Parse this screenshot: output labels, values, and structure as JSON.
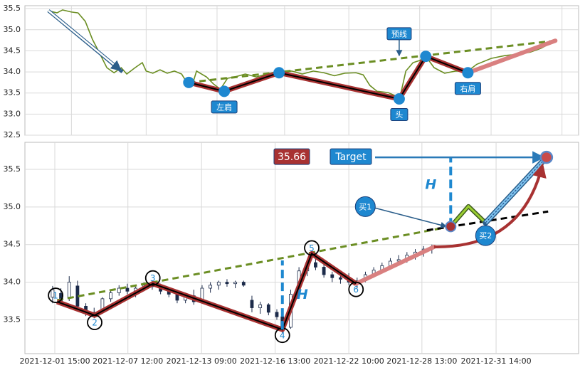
{
  "chart_data": [
    {
      "type": "line",
      "xlim": [
        0,
        100
      ],
      "xticks": [
        8.4,
        21.9,
        34.7,
        46.9,
        58.5,
        71.3,
        84.2,
        97.0
      ],
      "ylim": [
        32.5,
        35.57
      ],
      "yticks": [
        32.5,
        {
          "value": 33,
          "label": "33.0"
        },
        33.5,
        {
          "value": 34,
          "label": "34.0"
        },
        34.5,
        {
          "value": 35,
          "label": "35.0"
        },
        35.5
      ],
      "grid": true,
      "series": [
        {
          "color": "#6b8e23",
          "x": [
            4.2,
            5.8,
            6.8,
            8.4,
            9.6,
            10.9,
            12.2,
            13.5,
            14.8,
            16.1,
            17.4,
            18.4,
            19.9,
            21.2,
            21.9,
            23.1,
            24.4,
            25.7,
            27.0,
            28.3,
            29.2,
            30.2,
            31.0,
            32.8,
            34.1,
            35.3,
            36.6,
            37.9,
            39.8,
            41.8,
            43.7,
            45.9,
            48.2,
            50.1,
            52.1,
            54.0,
            55.9,
            57.8,
            59.8,
            61.1,
            62.3,
            63.6,
            65.6,
            67.0,
            67.7,
            68.8,
            70.1,
            71.3,
            72.4,
            73.9,
            75.8,
            77.8,
            80.0,
            81.6,
            84.2,
            86.8,
            89.3,
            91.3,
            93.2,
            95.1,
            95.8
          ],
          "values": [
            35.45,
            35.4,
            35.47,
            35.42,
            35.4,
            35.2,
            34.77,
            34.44,
            34.1,
            33.98,
            34.1,
            33.95,
            34.1,
            34.22,
            34.02,
            33.97,
            34.05,
            33.97,
            34.02,
            33.95,
            33.76,
            33.68,
            34.02,
            33.88,
            33.71,
            33.59,
            33.85,
            33.88,
            33.95,
            33.88,
            33.95,
            34.02,
            34.02,
            33.95,
            34.02,
            33.98,
            33.91,
            33.97,
            33.98,
            33.93,
            33.68,
            33.54,
            33.51,
            33.43,
            33.38,
            34.02,
            34.22,
            34.27,
            34.37,
            34.1,
            33.97,
            34.02,
            34.02,
            34.18,
            34.32,
            34.39,
            34.42,
            34.47,
            34.56,
            34.69,
            34.74
          ]
        }
      ],
      "pattern": {
        "color": "#a83232",
        "x": [
          29.6,
          36.0,
          45.9,
          67.6,
          72.4,
          80.0
        ],
        "values": [
          33.75,
          33.54,
          33.98,
          33.36,
          34.37,
          33.98
        ]
      },
      "projection": {
        "color": "#d98080",
        "x": [
          80.0,
          95.8
        ],
        "values": [
          33.98,
          34.74
        ]
      },
      "neckline": {
        "color": "#6b8e23",
        "x": [
          29.6,
          95.8
        ],
        "values": [
          33.75,
          34.74
        ]
      },
      "annotations": [
        {
          "text": "左肩",
          "x": 36.0,
          "y": 33.54
        },
        {
          "text": "头",
          "x": 67.6,
          "y": 33.36
        },
        {
          "text": "右肩",
          "x": 80.0,
          "y": 33.98
        }
      ],
      "neck_label": {
        "text": "预线",
        "x": 67.6,
        "y": 34.35
      }
    },
    {
      "type": "candlestick",
      "xlim": [
        0,
        100
      ],
      "xticks": [
        {
          "value": 5.4,
          "label": "2021-12-01 15:00"
        },
        {
          "value": 18.6,
          "label": "2021-12-07 12:00"
        },
        {
          "value": 31.9,
          "label": "2021-12-13 09:00"
        },
        {
          "value": 45.2,
          "label": "2021-12-16 13:00"
        },
        {
          "value": 58.5,
          "label": "2021-12-22 10:00"
        },
        {
          "value": 71.7,
          "label": "2021-12-28 13:00"
        },
        {
          "value": 85.1,
          "label": "2021-12-31 14:00"
        }
      ],
      "ylim": [
        33.05,
        35.86
      ],
      "yticks": [
        33.5,
        {
          "value": 34,
          "label": "34.0"
        },
        34.5,
        {
          "value": 35,
          "label": "35.0"
        },
        35.5
      ],
      "grid": true,
      "x": [
        5.0,
        6.5,
        8.0,
        9.5,
        11.0,
        12.5,
        14.0,
        15.5,
        17.0,
        18.5,
        20.0,
        21.5,
        23.0,
        24.5,
        26.0,
        27.5,
        29.0,
        30.5,
        32.0,
        33.5,
        35.0,
        36.5,
        38.0,
        39.5,
        41.0,
        42.5,
        44.0,
        45.5,
        46.5,
        48.0,
        49.5,
        51.0,
        52.5,
        54.0,
        55.5,
        57.0,
        58.5,
        60.0,
        61.5,
        63.0,
        64.5,
        66.0,
        67.5,
        69.0,
        70.5,
        72.0,
        73.5
      ],
      "open": [
        33.8,
        33.85,
        33.8,
        33.95,
        33.68,
        33.6,
        33.62,
        33.78,
        33.86,
        33.92,
        33.86,
        33.92,
        33.96,
        33.94,
        33.88,
        33.84,
        33.76,
        33.82,
        33.74,
        33.92,
        33.96,
        34.0,
        33.98,
        34.0,
        33.76,
        33.66,
        33.7,
        33.6,
        33.54,
        33.4,
        33.84,
        34.15,
        34.26,
        34.2,
        34.1,
        34.06,
        34.04,
        34.0,
        34.02,
        34.1,
        34.16,
        34.22,
        34.28,
        34.3,
        34.36,
        34.4,
        34.44
      ],
      "high": [
        33.95,
        33.92,
        34.08,
        34.02,
        33.72,
        33.66,
        33.8,
        33.9,
        33.96,
        33.98,
        33.94,
        34.0,
        34.02,
        33.98,
        33.92,
        33.9,
        33.86,
        33.9,
        33.96,
        34.0,
        34.02,
        34.04,
        34.02,
        34.02,
        33.82,
        33.74,
        33.72,
        33.64,
        33.6,
        33.9,
        34.2,
        34.3,
        34.36,
        34.24,
        34.14,
        34.1,
        34.12,
        34.06,
        34.14,
        34.2,
        34.26,
        34.32,
        34.36,
        34.4,
        34.44,
        34.48,
        34.5
      ],
      "low": [
        33.72,
        33.7,
        33.75,
        33.65,
        33.55,
        33.52,
        33.6,
        33.74,
        33.82,
        33.84,
        33.8,
        33.88,
        33.9,
        33.84,
        33.8,
        33.72,
        33.72,
        33.7,
        33.72,
        33.86,
        33.9,
        33.94,
        33.92,
        33.94,
        33.6,
        33.58,
        33.56,
        33.5,
        33.32,
        33.38,
        33.8,
        34.08,
        34.16,
        34.06,
        34.0,
        33.98,
        33.96,
        33.92,
        34.0,
        34.06,
        34.12,
        34.18,
        34.22,
        34.26,
        34.3,
        34.34,
        34.38
      ],
      "close": [
        33.9,
        33.75,
        34.0,
        33.68,
        33.6,
        33.58,
        33.78,
        33.86,
        33.92,
        33.88,
        33.92,
        33.96,
        33.94,
        33.88,
        33.84,
        33.76,
        33.82,
        33.74,
        33.92,
        33.96,
        34.0,
        33.98,
        34.0,
        33.96,
        33.66,
        33.7,
        33.6,
        33.54,
        33.4,
        33.84,
        34.15,
        34.26,
        34.2,
        34.1,
        34.06,
        34.04,
        34.0,
        34.02,
        34.1,
        34.16,
        34.22,
        34.28,
        34.3,
        34.36,
        34.4,
        34.44,
        34.46
      ],
      "pattern": {
        "color": "#a83232",
        "x": [
          5.8,
          12.6,
          23.1,
          46.5,
          51.8,
          59.8
        ],
        "values": [
          33.74,
          33.56,
          33.98,
          33.37,
          34.38,
          33.98
        ],
        "labels": [
          "1",
          "2",
          "3",
          "4",
          "5",
          "6"
        ]
      },
      "projection": {
        "color": "#d98080",
        "x": [
          59.8,
          73.9
        ],
        "values": [
          33.98,
          34.47
        ]
      },
      "neckline": {
        "color": "#6b8e23",
        "x": [
          5.8,
          76.9
        ],
        "values": [
          33.76,
          34.74
        ]
      },
      "breakout_line": {
        "color": "#000000",
        "x": [
          72.6,
          94.5
        ],
        "values": [
          34.69,
          34.94
        ]
      },
      "heights": [
        {
          "label": "H",
          "x": 46.5,
          "values": [
            33.37,
            34.29
          ]
        },
        {
          "label": "H",
          "x": 76.9,
          "values": [
            34.74,
            35.66
          ]
        }
      ],
      "target": {
        "label": "Target",
        "value": 35.66,
        "x": 94.2
      },
      "buy1": {
        "label": "买1",
        "x": 76.9,
        "value": 34.74
      },
      "buy2": {
        "label": "买2",
        "x": [
          76.9,
          80.1,
          83.2
        ],
        "values": [
          34.74,
          35.01,
          34.79
        ]
      }
    }
  ]
}
